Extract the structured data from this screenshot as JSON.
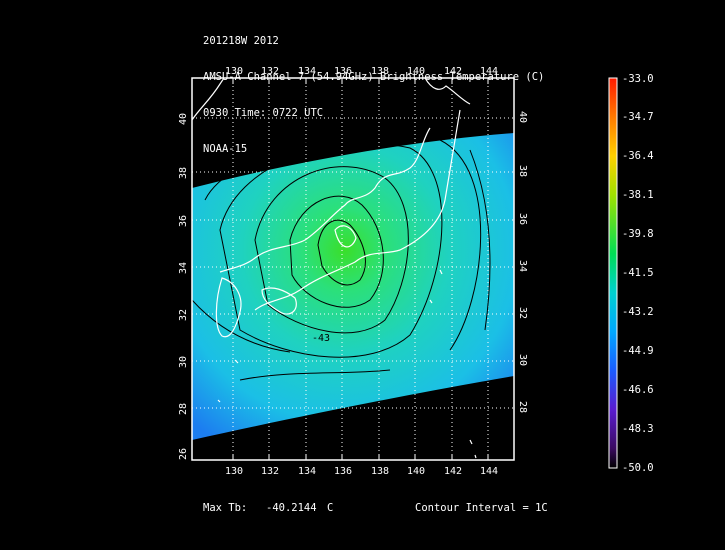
{
  "header": {
    "line1": "201218W 2012",
    "line2": "AMSU-A Channel 7 (54.94GHz) Brightness Temperature (C)",
    "line3": "0930 Time: 0722 UTC",
    "line4": "NOAA-15"
  },
  "map": {
    "lon_ticks": [
      "130",
      "132",
      "134",
      "136",
      "138",
      "140",
      "142",
      "144"
    ],
    "lat_ticks": [
      "28",
      "30",
      "32",
      "34",
      "36",
      "38",
      "40"
    ],
    "lat_ticks_left": [
      "26",
      "28",
      "30",
      "32",
      "34",
      "36",
      "38",
      "40"
    ],
    "contour_label": "-43"
  },
  "colorbar": {
    "labels": [
      "-33.0",
      "-34.7",
      "-36.4",
      "-38.1",
      "-39.8",
      "-41.5",
      "-43.2",
      "-44.9",
      "-46.6",
      "-48.3",
      "-50.0"
    ]
  },
  "footer": {
    "max_label": "Max Tb:",
    "max_value": "-40.2144",
    "max_unit": "C",
    "contour_interval": "Contour Interval = 1C"
  },
  "colors": {
    "field_main": "#1fc0e0",
    "field_center": "#33dd33"
  }
}
